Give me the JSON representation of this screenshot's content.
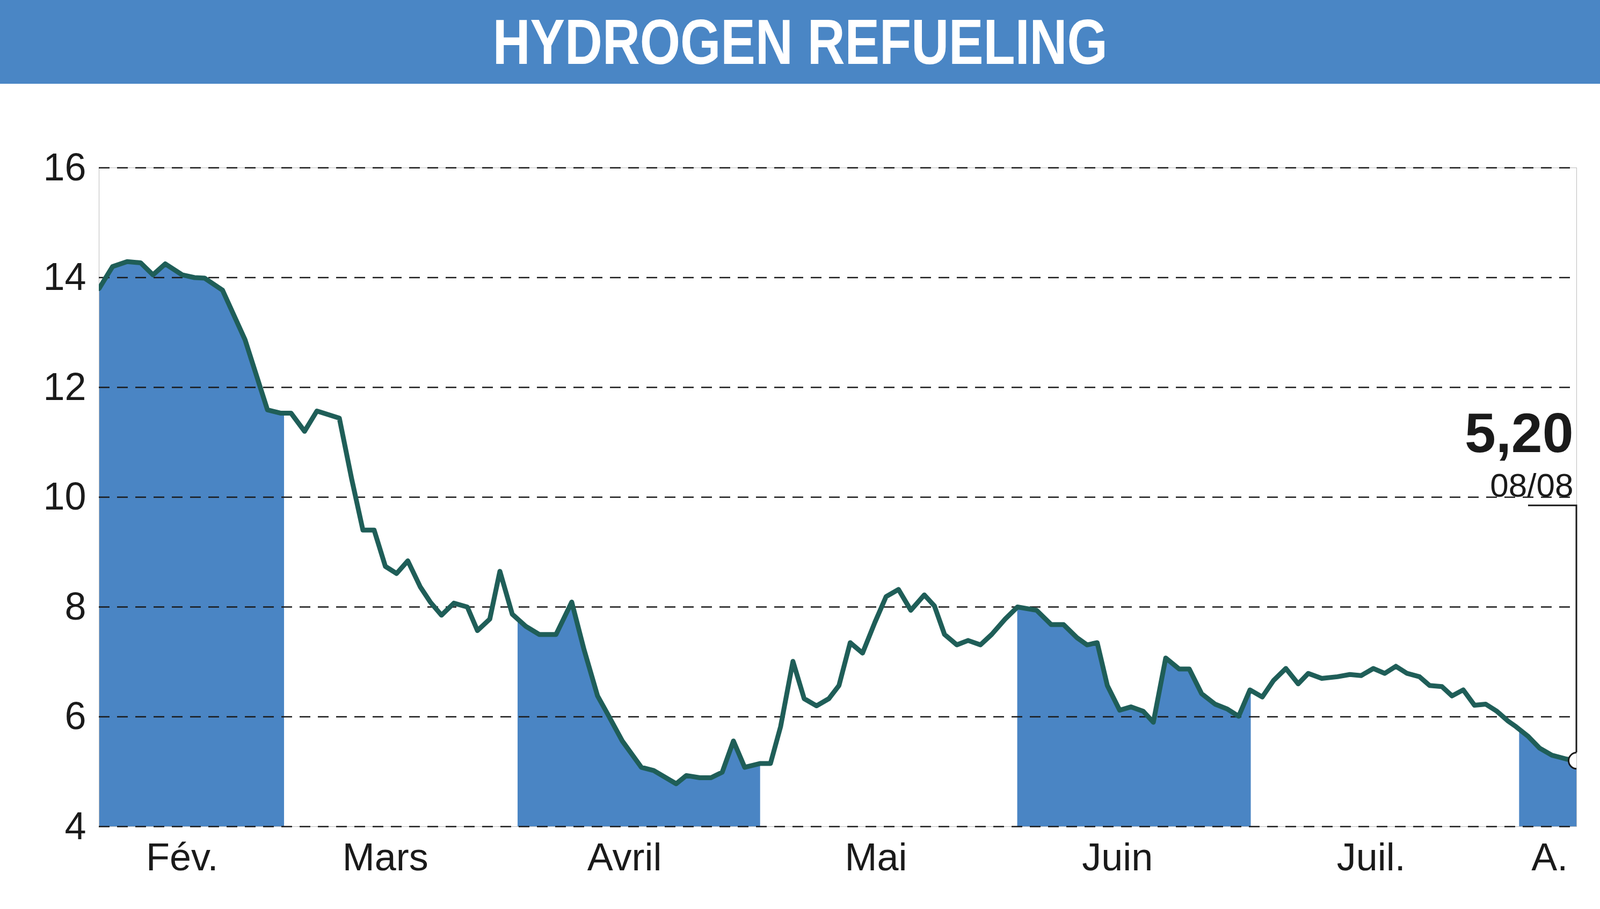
{
  "chart_data": {
    "type": "line",
    "title": "HYDROGEN REFUELING",
    "color": "#1f5e58",
    "area_color": "#4a85c4",
    "x": [
      0,
      1.2,
      2.5,
      3.7,
      4.8,
      5.9,
      7.4,
      8.5,
      9.4,
      11.0,
      13.0,
      15.0,
      16.2,
      17.1,
      18.3,
      19.4,
      21.4,
      22.5,
      23.5,
      24.5,
      25.5,
      26.5,
      27.5,
      28.6,
      29.5,
      30.5,
      31.6,
      32.8,
      33.7,
      34.8,
      35.7,
      36.8,
      38.0,
      39.2,
      40.7,
      42.1,
      43.2,
      44.4,
      45.3,
      46.6,
      48.3,
      49.4,
      51.4,
      52.3,
      53.5,
      54.5,
      55.5,
      56.5,
      57.5,
      58.9,
      59.8,
      60.7,
      61.8,
      62.8,
      63.9,
      65.0,
      65.9,
      66.9,
      68.0,
      69.1,
      70.1,
      71.2,
      72.3,
      73.5,
      74.4,
      75.3,
      76.4,
      77.4,
      78.5,
      79.5,
      80.7,
      81.8,
      83.5,
      84.8,
      85.9,
      87.1,
      88.0,
      88.9,
      89.8,
      90.9,
      91.9,
      93.0,
      93.9,
      95.0,
      96.2,
      97.1,
      98.2,
      99.4,
      100.5,
      101.5,
      102.5,
      103.6,
      104.6,
      105.7,
      106.8,
      107.7,
      108.9,
      110.3,
      111.4,
      112.4,
      113.5,
      114.5,
      115.5,
      116.5,
      117.6,
      118.5,
      119.6,
      120.5,
      121.5,
      122.5,
      123.5,
      124.5,
      125.5,
      126.2,
      127.3,
      128.3,
      129.4,
      130.7,
      131.6
    ],
    "values": [
      13.8,
      14.2,
      14.29,
      14.27,
      14.05,
      14.25,
      14.05,
      14.0,
      13.99,
      13.77,
      12.87,
      11.59,
      11.53,
      11.53,
      11.2,
      11.57,
      11.44,
      10.33,
      9.4,
      9.4,
      8.74,
      8.61,
      8.84,
      8.37,
      8.09,
      7.85,
      8.07,
      8.0,
      7.57,
      7.78,
      8.65,
      7.87,
      7.65,
      7.5,
      7.5,
      8.09,
      7.22,
      6.38,
      6.05,
      5.56,
      5.08,
      5.02,
      4.78,
      4.93,
      4.89,
      4.89,
      4.99,
      5.56,
      5.08,
      5.15,
      5.15,
      5.82,
      7.01,
      6.33,
      6.2,
      6.33,
      6.57,
      7.35,
      7.16,
      7.72,
      8.19,
      8.32,
      7.94,
      8.22,
      8.02,
      7.5,
      7.31,
      7.39,
      7.31,
      7.5,
      7.78,
      8.0,
      7.94,
      7.68,
      7.68,
      7.44,
      7.31,
      7.35,
      6.57,
      6.12,
      6.18,
      6.1,
      5.9,
      7.07,
      6.87,
      6.87,
      6.42,
      6.23,
      6.14,
      6.01,
      6.49,
      6.36,
      6.66,
      6.88,
      6.6,
      6.79,
      6.7,
      6.73,
      6.77,
      6.75,
      6.88,
      6.79,
      6.92,
      6.79,
      6.73,
      6.57,
      6.55,
      6.38,
      6.49,
      6.21,
      6.23,
      6.1,
      5.92,
      5.82,
      5.64,
      5.43,
      5.3,
      5.23,
      5.2
    ],
    "xlim": [
      0,
      131.6
    ],
    "xticks": [
      {
        "value": 7.4,
        "label": "Fév."
      },
      {
        "value": 25.5,
        "label": "Mars"
      },
      {
        "value": 46.8,
        "label": "Avril"
      },
      {
        "value": 69.2,
        "label": "Mai"
      },
      {
        "value": 90.7,
        "label": "Juin"
      },
      {
        "value": 113.3,
        "label": "Juil."
      },
      {
        "value": 129.2,
        "label": "A."
      }
    ],
    "shaded_ranges": [
      [
        0,
        16.5
      ],
      [
        37.3,
        58.9
      ],
      [
        81.8,
        102.6
      ],
      [
        126.5,
        131.6
      ]
    ],
    "ylim": [
      4,
      16
    ],
    "yticks": [
      4,
      6,
      8,
      10,
      12,
      14,
      16
    ],
    "grid": true,
    "last_label": {
      "value": 5.2,
      "label": "5,20",
      "date": "08/08"
    }
  }
}
